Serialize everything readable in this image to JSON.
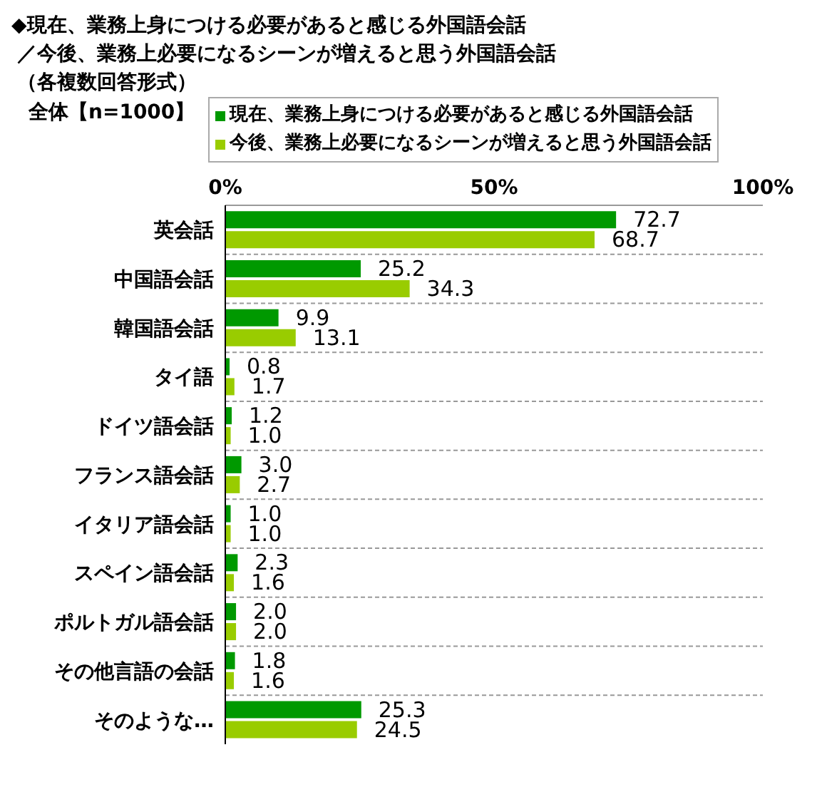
{
  "chart_data": {
    "type": "bar",
    "orientation": "horizontal",
    "title": "◆現在、業務上身につける必要があると感じる外国語会話",
    "subtitle": "／今後、業務上必要になるシーンが増えると思う外国語会話",
    "annotations": [
      "（各複数回答形式）",
      "全体【n=1000】"
    ],
    "categories": [
      "英会話",
      "中国語会話",
      "韓国語会話",
      "タイ語",
      "ドイツ語会話",
      "フランス語会話",
      "イタリア語会話",
      "スペイン語会話",
      "ポルトガル語会話",
      "その他言語の会話",
      "そのような…"
    ],
    "series": [
      {
        "name": "現在、業務上身につける必要があると感じる外国語会話",
        "color": "#009900",
        "values": [
          72.7,
          25.2,
          9.9,
          0.8,
          1.2,
          3.0,
          1.0,
          2.3,
          2.0,
          1.8,
          25.3
        ],
        "value_labels": [
          "72.7",
          "25.2",
          "9.9",
          "0.8",
          "1.2",
          "3.0",
          "1.0",
          "2.3",
          "2.0",
          "1.8",
          "25.3"
        ]
      },
      {
        "name": "今後、業務上必要になるシーンが増えると思う外国語会話",
        "color": "#99cc00",
        "values": [
          68.7,
          34.3,
          13.1,
          1.7,
          1.0,
          2.7,
          1.0,
          1.6,
          2.0,
          1.6,
          24.5
        ],
        "value_labels": [
          "68.7",
          "34.3",
          "13.1",
          "1.7",
          "1.0",
          "2.7",
          "1.0",
          "1.6",
          "2.0",
          "1.6",
          "24.5"
        ]
      }
    ],
    "xlim": [
      0,
      100
    ],
    "xticks": [
      {
        "value": 0,
        "label": "0%"
      },
      {
        "value": 50,
        "label": "50%"
      },
      {
        "value": 100,
        "label": "100%"
      }
    ],
    "grid": "y",
    "legend": "top"
  }
}
